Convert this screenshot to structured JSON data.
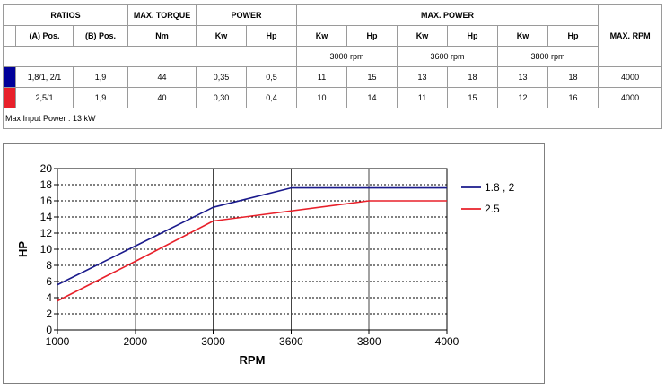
{
  "table": {
    "header_row1": {
      "ratios": "RATIOS",
      "max_torque": "MAX. TORQUE",
      "power": "POWER",
      "max_power": "MAX. POWER",
      "max_rpm": "MAX. RPM"
    },
    "header_row2": {
      "a_pos": "(A) Pos.",
      "b_pos": "(B) Pos.",
      "torque_unit": "Nm",
      "power_kw": "Kw",
      "power_hp": "Hp",
      "mp_kw_1": "Kw",
      "mp_hp_1": "Hp",
      "mp_kw_2": "Kw",
      "mp_hp_2": "Hp",
      "mp_kw_3": "Kw",
      "mp_hp_3": "Hp"
    },
    "rpm_row": {
      "rpm_1": "3000 rpm",
      "rpm_2": "3600 rpm",
      "rpm_3": "3800 rpm"
    },
    "rows": [
      {
        "color": "#00009a",
        "a_pos": "1,8/1, 2/1",
        "b_pos": "1,9",
        "torque": "44",
        "kw": "0,35",
        "hp": "0,5",
        "kw_3000": "11",
        "hp_3000": "15",
        "kw_3600": "13",
        "hp_3600": "18",
        "kw_3800": "13",
        "hp_3800": "18",
        "max_rpm": "4000"
      },
      {
        "color": "#e8202a",
        "a_pos": "2,5/1",
        "b_pos": "1,9",
        "torque": "40",
        "kw": "0,30",
        "hp": "0,4",
        "kw_3000": "10",
        "hp_3000": "14",
        "kw_3600": "11",
        "hp_3600": "15",
        "kw_3800": "12",
        "hp_3800": "16",
        "max_rpm": "4000"
      }
    ],
    "note": "Max Input Power : 13 kW"
  },
  "chart_data": {
    "type": "line",
    "xlabel": "RPM",
    "ylabel": "HP",
    "categories": [
      "1000",
      "2000",
      "3000",
      "3600",
      "3800",
      "4000"
    ],
    "x_positions": [
      1000,
      2000,
      3000,
      4000,
      5000,
      6000
    ],
    "yticks": [
      0,
      2,
      4,
      6,
      8,
      10,
      12,
      14,
      16,
      18,
      20
    ],
    "ylim": [
      0,
      20
    ],
    "xlim": [
      1000,
      6000
    ],
    "grid": "horizontal dashed; vertical at 2000, 3000, 3600, 3800",
    "legend_position": "right",
    "series": [
      {
        "name": "1.8 , 2",
        "color": "#1a1a8c",
        "x": [
          1000,
          2000,
          3000,
          4000,
          6000
        ],
        "y": [
          5.6,
          10.4,
          15.2,
          17.6,
          17.6
        ]
      },
      {
        "name": "2.5",
        "color": "#e8202a",
        "x": [
          1000,
          2000,
          3000,
          5000,
          6000
        ],
        "y": [
          3.6,
          8.5,
          13.5,
          16.0,
          16.0
        ]
      }
    ]
  }
}
